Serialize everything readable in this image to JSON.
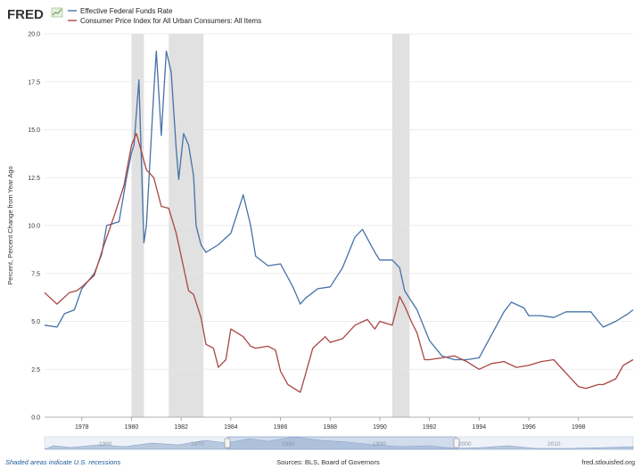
{
  "brand": {
    "name": "FRED"
  },
  "chart_data": {
    "type": "line",
    "ylabel": "Percent, Percent Change from Year Ago",
    "ylim": [
      0,
      20
    ],
    "yticks": [
      "0.0",
      "2.5",
      "5.0",
      "7.5",
      "10.0",
      "12.5",
      "15.0",
      "17.5",
      "20.0"
    ],
    "xlim": [
      1976.5,
      2000.2
    ],
    "xticks": [
      "1978",
      "1980",
      "1982",
      "1984",
      "1986",
      "1988",
      "1990",
      "1992",
      "1994",
      "1996",
      "1998"
    ],
    "grid": "horizontal",
    "legend_position": "top-left",
    "recessions": [
      [
        1980.0,
        1980.5
      ],
      [
        1981.5,
        1982.9
      ],
      [
        1990.5,
        1991.2
      ]
    ],
    "series": [
      {
        "name": "Effective Federal Funds Rate",
        "color": "#4572a7",
        "points": [
          [
            1976.5,
            4.8
          ],
          [
            1977.0,
            4.7
          ],
          [
            1977.3,
            5.4
          ],
          [
            1977.7,
            5.6
          ],
          [
            1978.0,
            6.7
          ],
          [
            1978.5,
            7.5
          ],
          [
            1978.8,
            8.5
          ],
          [
            1979.0,
            10.0
          ],
          [
            1979.5,
            10.2
          ],
          [
            1979.8,
            12.5
          ],
          [
            1980.0,
            13.8
          ],
          [
            1980.1,
            14.2
          ],
          [
            1980.3,
            17.6
          ],
          [
            1980.5,
            9.1
          ],
          [
            1980.6,
            10.0
          ],
          [
            1980.9,
            17.0
          ],
          [
            1981.0,
            19.1
          ],
          [
            1981.2,
            14.7
          ],
          [
            1981.4,
            19.1
          ],
          [
            1981.6,
            18.0
          ],
          [
            1981.8,
            14.0
          ],
          [
            1981.9,
            12.4
          ],
          [
            1982.1,
            14.8
          ],
          [
            1982.3,
            14.2
          ],
          [
            1982.5,
            12.6
          ],
          [
            1982.6,
            10.0
          ],
          [
            1982.8,
            9.0
          ],
          [
            1983.0,
            8.6
          ],
          [
            1983.5,
            9.0
          ],
          [
            1984.0,
            9.6
          ],
          [
            1984.5,
            11.6
          ],
          [
            1984.8,
            10.0
          ],
          [
            1985.0,
            8.4
          ],
          [
            1985.5,
            7.9
          ],
          [
            1986.0,
            8.0
          ],
          [
            1986.5,
            6.8
          ],
          [
            1986.8,
            5.9
          ],
          [
            1987.0,
            6.2
          ],
          [
            1987.5,
            6.7
          ],
          [
            1988.0,
            6.8
          ],
          [
            1988.5,
            7.8
          ],
          [
            1989.0,
            9.4
          ],
          [
            1989.3,
            9.8
          ],
          [
            1989.8,
            8.6
          ],
          [
            1990.0,
            8.2
          ],
          [
            1990.5,
            8.2
          ],
          [
            1990.8,
            7.8
          ],
          [
            1991.0,
            6.6
          ],
          [
            1991.5,
            5.6
          ],
          [
            1992.0,
            4.0
          ],
          [
            1992.5,
            3.2
          ],
          [
            1993.0,
            3.0
          ],
          [
            1993.5,
            3.0
          ],
          [
            1994.0,
            3.1
          ],
          [
            1994.5,
            4.3
          ],
          [
            1995.0,
            5.5
          ],
          [
            1995.3,
            6.0
          ],
          [
            1995.8,
            5.7
          ],
          [
            1996.0,
            5.3
          ],
          [
            1996.5,
            5.3
          ],
          [
            1997.0,
            5.2
          ],
          [
            1997.5,
            5.5
          ],
          [
            1998.0,
            5.5
          ],
          [
            1998.5,
            5.5
          ],
          [
            1998.8,
            5.0
          ],
          [
            1999.0,
            4.7
          ],
          [
            1999.5,
            5.0
          ],
          [
            2000.0,
            5.4
          ],
          [
            2000.2,
            5.6
          ]
        ]
      },
      {
        "name": "Consumer Price Index for All Urban Consumers: All Items",
        "color": "#aa4643",
        "points": [
          [
            1976.5,
            6.5
          ],
          [
            1977.0,
            5.9
          ],
          [
            1977.5,
            6.5
          ],
          [
            1977.8,
            6.6
          ],
          [
            1978.0,
            6.8
          ],
          [
            1978.5,
            7.4
          ],
          [
            1978.9,
            9.0
          ],
          [
            1979.3,
            10.5
          ],
          [
            1979.7,
            12.1
          ],
          [
            1980.0,
            14.2
          ],
          [
            1980.2,
            14.8
          ],
          [
            1980.6,
            12.9
          ],
          [
            1980.9,
            12.5
          ],
          [
            1981.2,
            11.0
          ],
          [
            1981.5,
            10.9
          ],
          [
            1981.8,
            9.6
          ],
          [
            1982.0,
            8.4
          ],
          [
            1982.3,
            6.6
          ],
          [
            1982.5,
            6.4
          ],
          [
            1982.8,
            5.2
          ],
          [
            1983.0,
            3.8
          ],
          [
            1983.3,
            3.6
          ],
          [
            1983.5,
            2.6
          ],
          [
            1983.8,
            3.0
          ],
          [
            1984.0,
            4.6
          ],
          [
            1984.5,
            4.2
          ],
          [
            1984.8,
            3.7
          ],
          [
            1985.0,
            3.6
          ],
          [
            1985.5,
            3.7
          ],
          [
            1985.8,
            3.5
          ],
          [
            1986.0,
            2.4
          ],
          [
            1986.3,
            1.7
          ],
          [
            1986.8,
            1.3
          ],
          [
            1987.0,
            2.2
          ],
          [
            1987.3,
            3.6
          ],
          [
            1987.8,
            4.2
          ],
          [
            1988.0,
            3.9
          ],
          [
            1988.5,
            4.1
          ],
          [
            1989.0,
            4.8
          ],
          [
            1989.5,
            5.1
          ],
          [
            1989.8,
            4.6
          ],
          [
            1990.0,
            5.0
          ],
          [
            1990.5,
            4.8
          ],
          [
            1990.8,
            6.3
          ],
          [
            1991.0,
            5.8
          ],
          [
            1991.3,
            4.9
          ],
          [
            1991.5,
            4.4
          ],
          [
            1991.8,
            3.0
          ],
          [
            1992.0,
            3.0
          ],
          [
            1992.5,
            3.1
          ],
          [
            1993.0,
            3.2
          ],
          [
            1993.5,
            2.9
          ],
          [
            1994.0,
            2.5
          ],
          [
            1994.5,
            2.8
          ],
          [
            1995.0,
            2.9
          ],
          [
            1995.5,
            2.6
          ],
          [
            1996.0,
            2.7
          ],
          [
            1996.5,
            2.9
          ],
          [
            1997.0,
            3.0
          ],
          [
            1997.5,
            2.3
          ],
          [
            1998.0,
            1.6
          ],
          [
            1998.3,
            1.5
          ],
          [
            1998.8,
            1.7
          ],
          [
            1999.0,
            1.7
          ],
          [
            1999.5,
            2.0
          ],
          [
            1999.8,
            2.7
          ],
          [
            2000.2,
            3.0
          ]
        ]
      }
    ]
  },
  "navigator": {
    "years": [
      "1960",
      "1970",
      "1980",
      "1990",
      "2000",
      "2010"
    ]
  },
  "footer": {
    "recession_note": "Shaded areas indicate U.S. recessions",
    "sources": "Sources: BLS, Board of Governors",
    "site": "fred.stlouisfed.org"
  }
}
